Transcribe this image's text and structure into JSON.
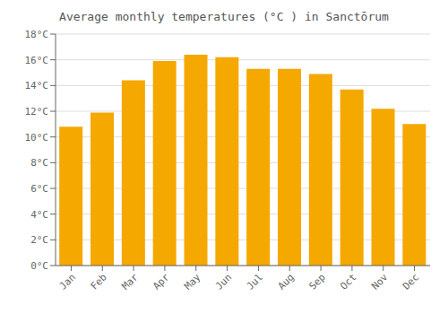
{
  "chart_data": {
    "type": "bar",
    "title": "Average monthly temperatures (°C ) in Sanctōrum",
    "categories": [
      "Jan",
      "Feb",
      "Mar",
      "Apr",
      "May",
      "Jun",
      "Jul",
      "Aug",
      "Sep",
      "Oct",
      "Nov",
      "Dec"
    ],
    "values": [
      10.8,
      11.9,
      14.4,
      15.9,
      16.4,
      16.2,
      15.3,
      15.3,
      14.9,
      13.7,
      12.2,
      11.0
    ],
    "color": "#F5A800",
    "ylim": [
      0,
      18
    ],
    "yticks": [
      {
        "value": 0,
        "label": "0°C"
      },
      {
        "value": 2,
        "label": "2°C"
      },
      {
        "value": 4,
        "label": "4°C"
      },
      {
        "value": 6,
        "label": "6°C"
      },
      {
        "value": 8,
        "label": "8°C"
      },
      {
        "value": 10,
        "label": "10°C"
      },
      {
        "value": 12,
        "label": "12°C"
      },
      {
        "value": 14,
        "label": "14°C"
      },
      {
        "value": 16,
        "label": "16°C"
      },
      {
        "value": 18,
        "label": "18°C"
      }
    ],
    "grid": true
  }
}
